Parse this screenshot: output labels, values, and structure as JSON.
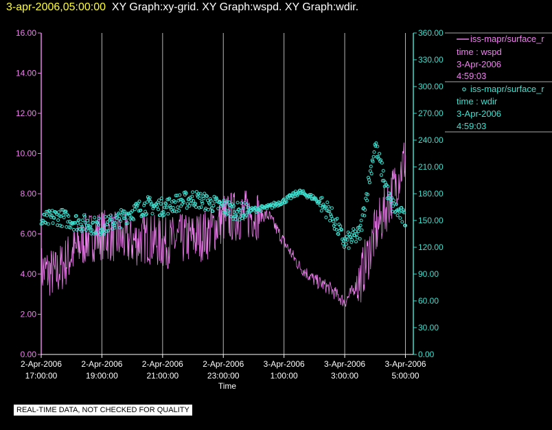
{
  "header": {
    "time": "3-apr-2006,05:00:00",
    "titles": "XY Graph:xy-grid.  XY Graph:wspd.  XY Graph:wdir."
  },
  "colors": {
    "background": "#000000",
    "wspd": "#ee82ee",
    "wdir": "#40e0d0",
    "header_time": "#ffff33",
    "grid": "#c0c0c0"
  },
  "legend": [
    {
      "marker": "line",
      "name": "iss-mapr/surface_r",
      "lines": [
        "time : wspd",
        "3-Apr-2006",
        "4:59:03"
      ]
    },
    {
      "marker": "circle",
      "name": "iss-mapr/surface_r",
      "lines": [
        "time : wdir",
        "3-Apr-2006",
        "4:59:03"
      ]
    }
  ],
  "footer": {
    "qc_label": "REAL-TIME DATA, NOT CHECKED FOR QUALITY"
  },
  "chart_data": {
    "type": "line",
    "xlabel": "Time",
    "x_ticks": [
      {
        "line1": "2-Apr-2006",
        "line2": "17:00:00"
      },
      {
        "line1": "2-Apr-2006",
        "line2": "19:00:00"
      },
      {
        "line1": "2-Apr-2006",
        "line2": "21:00:00"
      },
      {
        "line1": "2-Apr-2006",
        "line2": "23:00:00"
      },
      {
        "line1": "3-Apr-2006",
        "line2": "1:00:00"
      },
      {
        "line1": "3-Apr-2006",
        "line2": "3:00:00"
      },
      {
        "line1": "3-Apr-2006",
        "line2": "5:00:00"
      }
    ],
    "x_range": [
      "2-Apr-2006 17:00:00",
      "3-Apr-2006 05:00:00"
    ],
    "y_left": {
      "label": "",
      "range": [
        0,
        16
      ],
      "ticks": [
        "0.00",
        "2.00",
        "4.00",
        "6.00",
        "8.00",
        "10.00",
        "12.00",
        "14.00",
        "16.00"
      ]
    },
    "y_right": {
      "label": "",
      "range": [
        0,
        360
      ],
      "ticks": [
        "0.00",
        "30.00",
        "60.00",
        "90.00",
        "120.00",
        "150.00",
        "180.00",
        "210.00",
        "240.00",
        "270.00",
        "300.00",
        "330.00",
        "360.00"
      ]
    },
    "vertical_grid": true,
    "legend_position": "right",
    "series": [
      {
        "name": "wspd",
        "axis": "left",
        "style": "line",
        "hour_offsets": [
          0,
          0.5,
          1,
          1.5,
          2,
          2.5,
          3,
          3.5,
          4,
          4.5,
          5,
          5.5,
          6,
          6.5,
          7,
          7.5,
          8,
          8.5,
          9,
          9.5,
          10,
          10.5,
          11,
          11.5,
          12
        ],
        "values": [
          4.2,
          4.0,
          5.0,
          5.8,
          6.0,
          5.8,
          5.6,
          5.8,
          5.5,
          5.7,
          5.8,
          6.0,
          6.8,
          6.9,
          7.0,
          6.9,
          5.6,
          4.4,
          3.7,
          3.3,
          2.6,
          3.7,
          6.0,
          7.8,
          9.8
        ]
      },
      {
        "name": "wdir",
        "axis": "right",
        "style": "circle",
        "hour_offsets": [
          0,
          0.5,
          1,
          1.5,
          2,
          2.5,
          3,
          3.5,
          4,
          4.5,
          5,
          5.5,
          6,
          6.5,
          7,
          7.5,
          8,
          8.5,
          9,
          9.5,
          10,
          10.5,
          11,
          11.5,
          12
        ],
        "values": [
          148,
          155,
          150,
          146,
          143,
          150,
          160,
          167,
          165,
          170,
          175,
          170,
          165,
          160,
          162,
          165,
          172,
          182,
          175,
          160,
          125,
          135,
          235,
          170,
          150
        ]
      }
    ]
  }
}
